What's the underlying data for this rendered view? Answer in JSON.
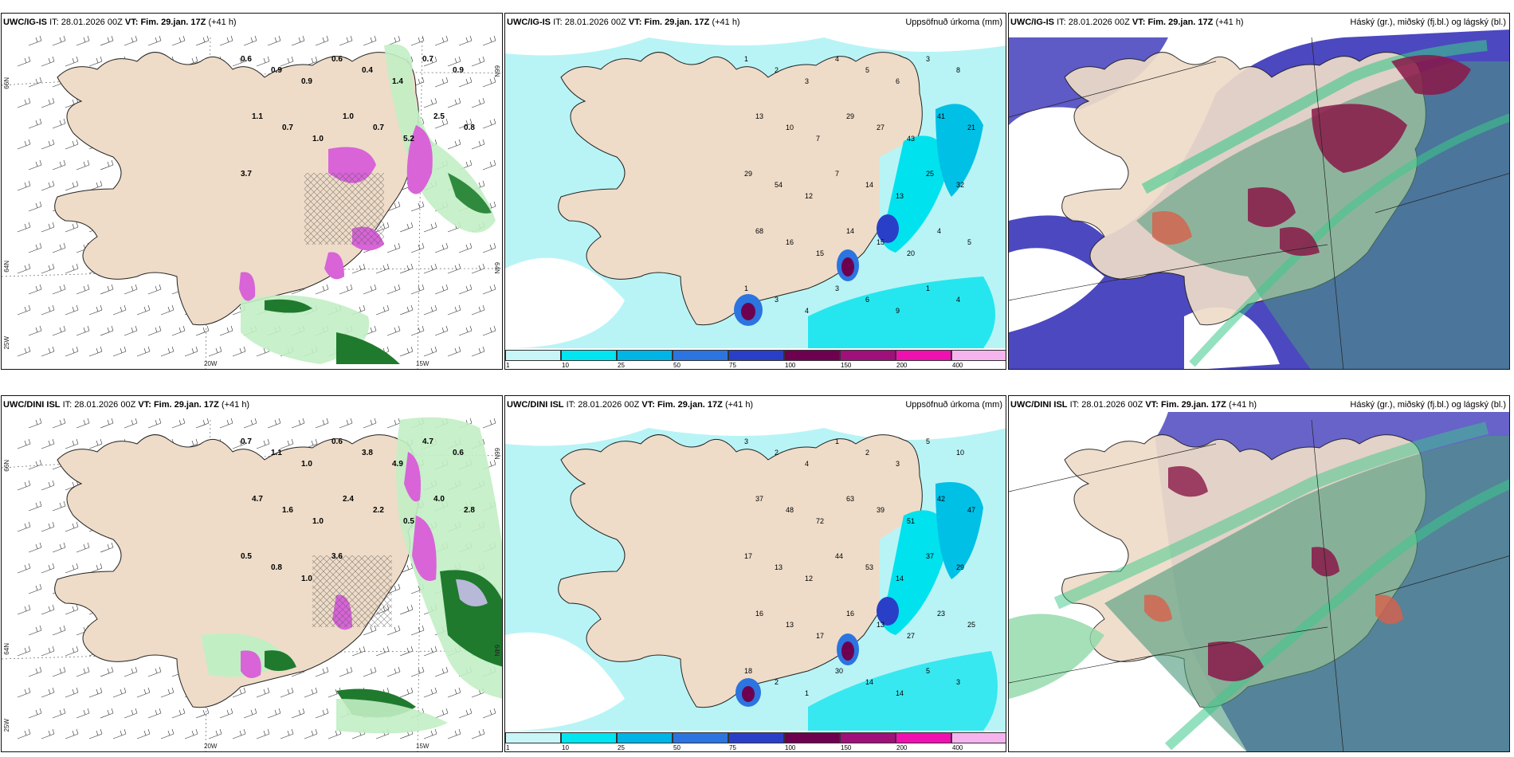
{
  "panels": {
    "p1": {
      "model": "UWC/IG-IS",
      "it_label": "IT:",
      "it_value": "28.01.2026 00Z",
      "vt_label": "VT:",
      "vt_value": "Fim. 29.jan. 17Z",
      "lead": "(+41 h)",
      "right_title": "",
      "lat_left_top": "66N",
      "lat_left_mid": "64N",
      "lat_left_bot": "25W",
      "lat_right_top": "66N",
      "lat_right_mid": "64N",
      "lon_1": "20W",
      "lon_2": "15W",
      "labels": [
        "0.6",
        "0.9",
        "0.9",
        "0.6",
        "0.4",
        "1.4",
        "0.7",
        "0.9",
        "1.1",
        "0.7",
        "1.0",
        "1.0",
        "0.7",
        "5.2",
        "2.5",
        "0.8",
        "3.7"
      ]
    },
    "p2": {
      "model": "UWC/IG-IS",
      "it_label": "IT:",
      "it_value": "28.01.2026 00Z",
      "vt_label": "VT:",
      "vt_value": "Fim. 29.jan. 17Z",
      "lead": "(+41 h)",
      "right_title": "Uppsöfnuð úrkoma (mm)",
      "labels": [
        "1",
        "2",
        "3",
        "4",
        "5",
        "6",
        "3",
        "8",
        "13",
        "10",
        "7",
        "29",
        "27",
        "43",
        "41",
        "21",
        "29",
        "54",
        "12",
        "7",
        "14",
        "13",
        "25",
        "32",
        "68",
        "16",
        "15",
        "14",
        "15",
        "20",
        "4",
        "5",
        "1",
        "3",
        "4",
        "3",
        "6",
        "9",
        "1",
        "4"
      ]
    },
    "p3": {
      "model": "UWC/IG-IS",
      "it_label": "IT:",
      "it_value": "28.01.2026 00Z",
      "vt_label": "VT:",
      "vt_value": "Fim. 29.jan. 17Z",
      "lead": "(+41 h)",
      "right_title": "Háský (gr.), miðský (fj.bl.) og lágský (bl.)"
    },
    "p4": {
      "model": "UWC/DINI ISL",
      "it_label": "IT:",
      "it_value": "28.01.2026 00Z",
      "vt_label": "VT:",
      "vt_value": "Fim. 29.jan. 17Z",
      "lead": "(+41 h)",
      "right_title": "",
      "lat_left_top": "66N",
      "lat_left_mid": "64N",
      "lat_left_bot": "25W",
      "lat_right_top": "66N",
      "lat_right_mid": "64N",
      "lon_1": "20W",
      "lon_2": "15W",
      "labels": [
        "0.7",
        "1.1",
        "1.0",
        "0.6",
        "3.8",
        "4.9",
        "4.7",
        "0.6",
        "4.7",
        "1.6",
        "1.0",
        "2.4",
        "2.2",
        "0.5",
        "4.0",
        "2.8",
        "0.5",
        "0.8",
        "1.0",
        "3.6"
      ]
    },
    "p5": {
      "model": "UWC/DINI ISL",
      "it_label": "IT:",
      "it_value": "28.01.2026 00Z",
      "vt_label": "VT:",
      "vt_value": "Fim. 29.jan. 17Z",
      "lead": "(+41 h)",
      "right_title": "Uppsöfnuð úrkoma (mm)",
      "labels": [
        "3",
        "2",
        "4",
        "1",
        "2",
        "3",
        "5",
        "10",
        "37",
        "48",
        "72",
        "63",
        "39",
        "51",
        "42",
        "47",
        "17",
        "13",
        "12",
        "44",
        "53",
        "14",
        "37",
        "29",
        "16",
        "13",
        "17",
        "16",
        "13",
        "27",
        "23",
        "25",
        "18",
        "2",
        "1",
        "30",
        "14",
        "14",
        "5",
        "3"
      ]
    },
    "p6": {
      "model": "UWC/DINI ISL",
      "it_label": "IT:",
      "it_value": "28.01.2026 00Z",
      "vt_label": "VT:",
      "vt_value": "Fim. 29.jan. 17Z",
      "lead": "(+41 h)",
      "right_title": "Háský (gr.), miðský (fj.bl.) og lágský (bl.)"
    }
  },
  "colorbar": {
    "ticks": [
      "1",
      "10",
      "25",
      "50",
      "75",
      "100",
      "150",
      "200",
      "400"
    ],
    "colors": [
      "#c8f5f8",
      "#00e5f0",
      "#00b4e6",
      "#2c74e0",
      "#2a3fc8",
      "#6e0050",
      "#a0107a",
      "#f010b0",
      "#f5b4ee"
    ]
  },
  "palette": {
    "land": "#eedcc8",
    "sea": "#ffffff",
    "precip_light": "#b8f4f6",
    "precip_mid": "#00e2ee",
    "green_light": "#c2eec4",
    "green_dark": "#1f7a2e",
    "magenta": "#d864d8",
    "cloud_high": "#4a9a7a",
    "cloud_mid": "#4c48c0",
    "cloud_low": "#8a1848"
  }
}
